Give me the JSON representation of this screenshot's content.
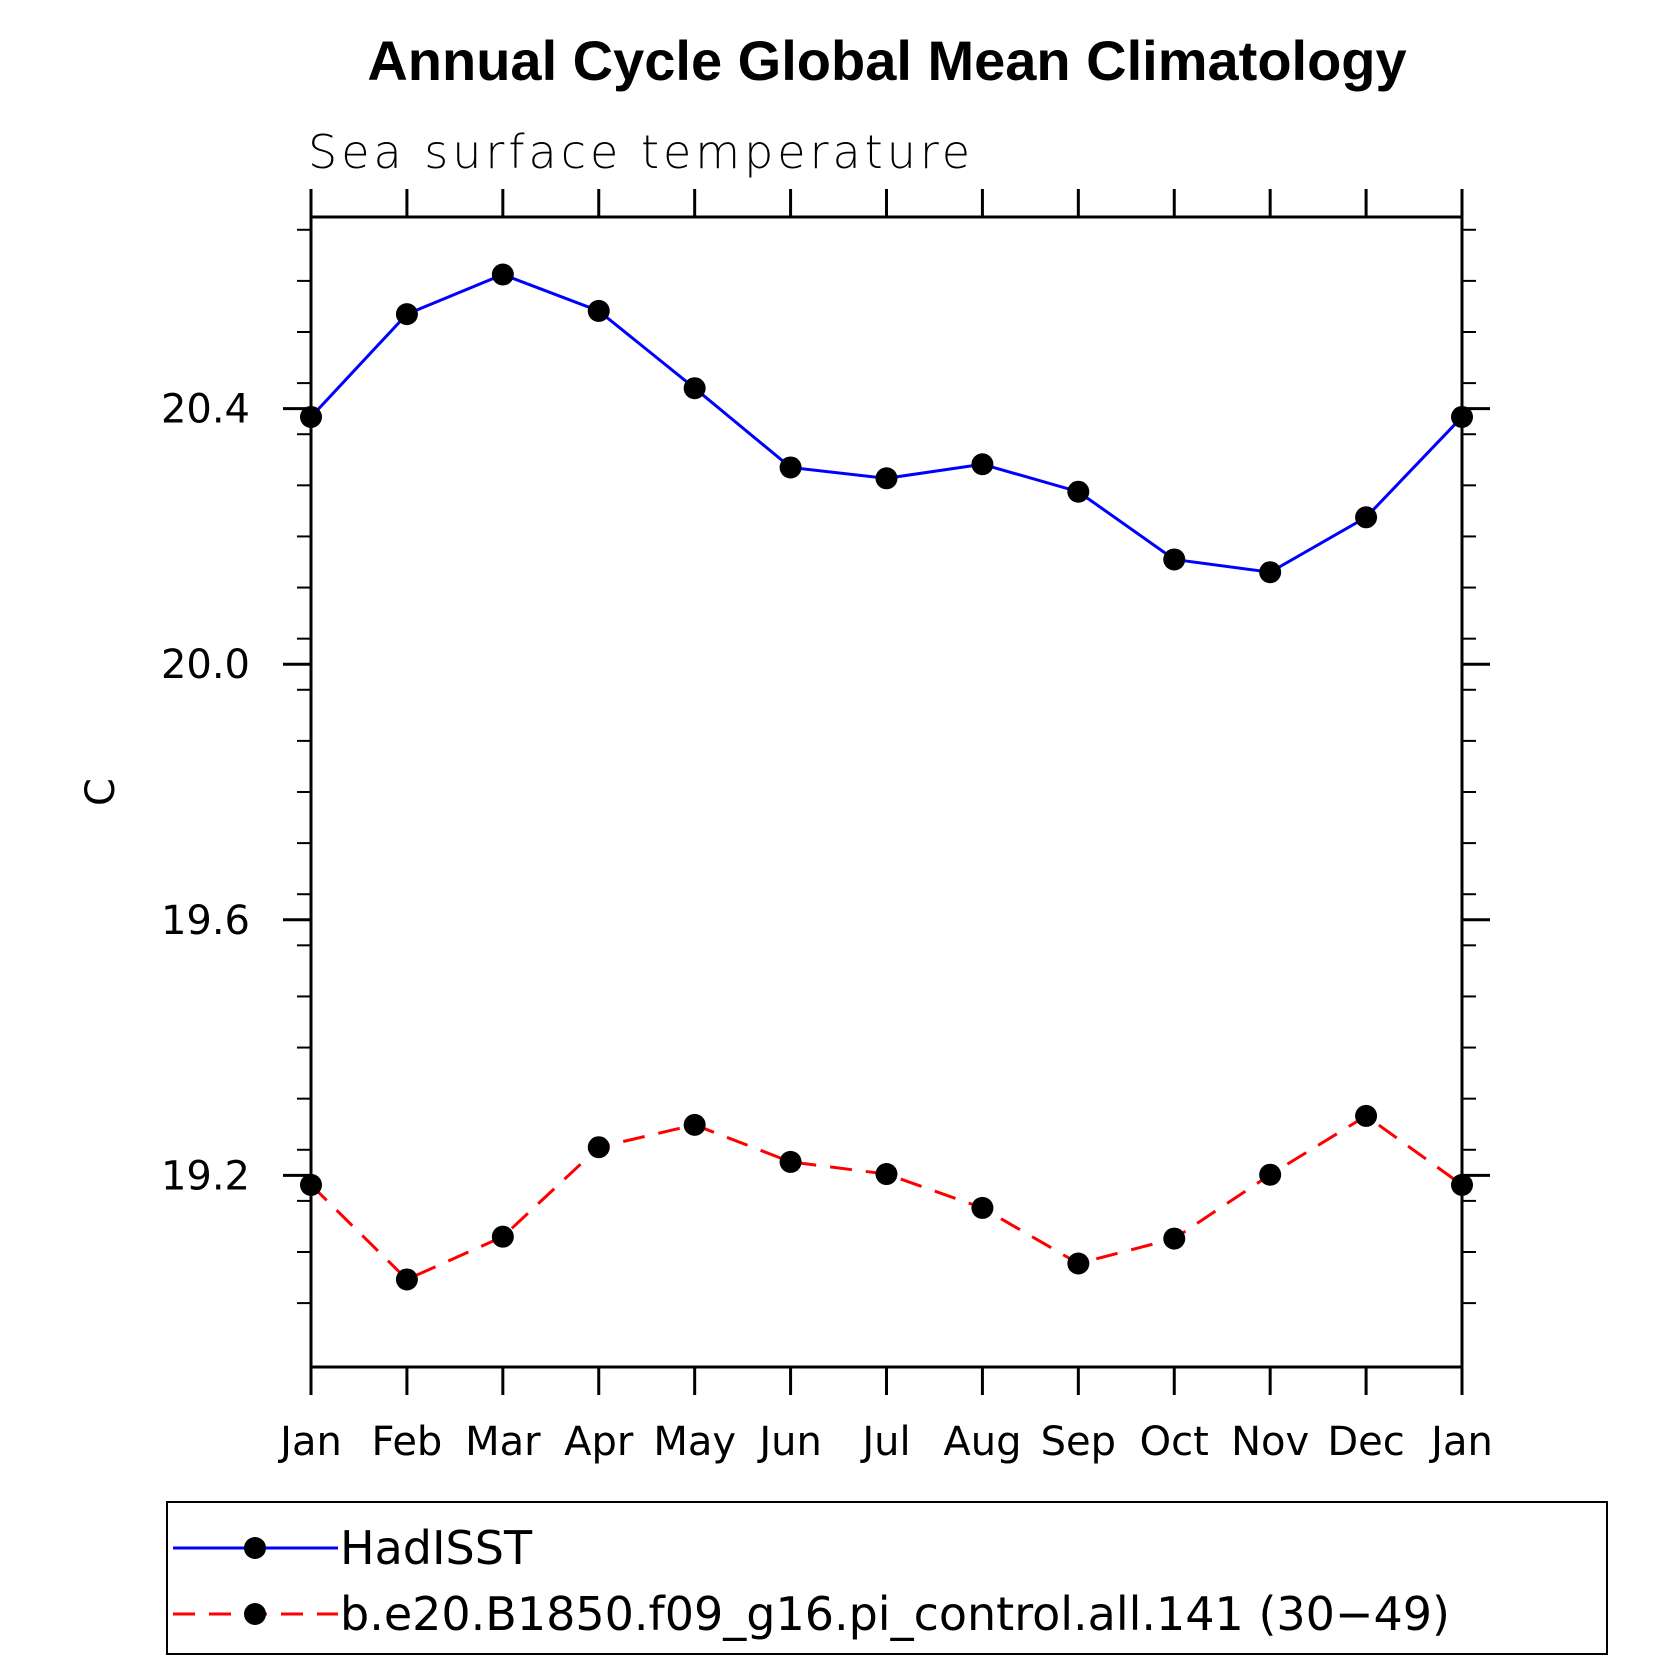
{
  "chart_data": {
    "type": "line",
    "title": "Annual Cycle Global Mean Climatology",
    "subtitle": "Sea surface temperature",
    "xlabel": "",
    "ylabel": "C",
    "categories": [
      "Jan",
      "Feb",
      "Mar",
      "Apr",
      "May",
      "Jun",
      "Jul",
      "Aug",
      "Sep",
      "Oct",
      "Nov",
      "Dec",
      "Jan"
    ],
    "ylim": [
      18.9,
      20.7
    ],
    "yticks": [
      "20.4",
      "20.0",
      "19.6",
      "19.2"
    ],
    "grid": false,
    "legend_position": "bottom",
    "series": [
      {
        "name": "HadISST",
        "color": "#0000ff",
        "line_style": "solid",
        "marker": "filled-circle",
        "values": [
          20.387,
          20.548,
          20.61,
          20.553,
          20.432,
          20.308,
          20.291,
          20.313,
          20.27,
          20.164,
          20.144,
          20.23,
          20.387
        ]
      },
      {
        "name": "b.e20.B1850.f09_g16.pi_control.all.141 (30−49)",
        "color": "#ff0000",
        "line_style": "dashed",
        "marker": "filled-circle",
        "values": [
          19.185,
          19.037,
          19.104,
          19.244,
          19.279,
          19.221,
          19.202,
          19.149,
          19.062,
          19.101,
          19.201,
          19.293,
          19.185
        ]
      }
    ]
  }
}
